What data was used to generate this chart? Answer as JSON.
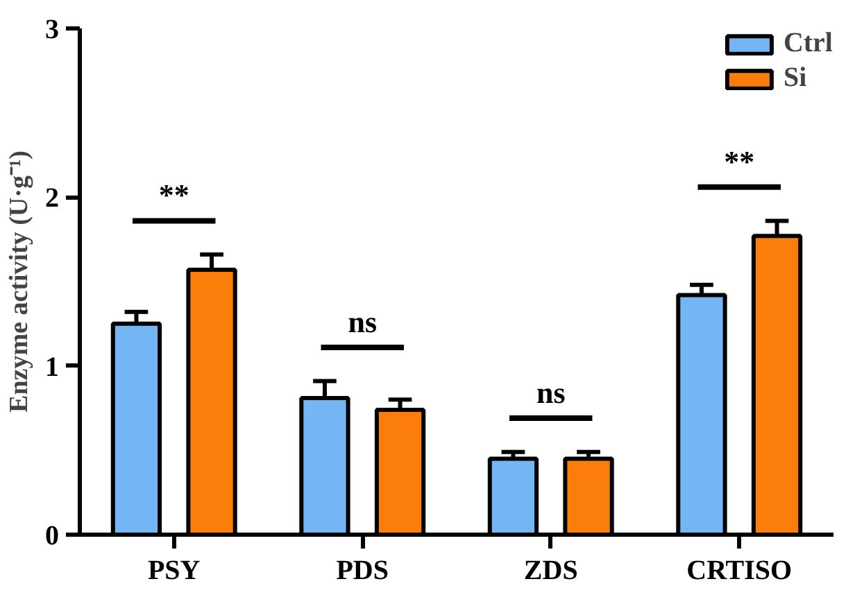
{
  "chart_data": {
    "type": "bar",
    "ylabel": "Enzyme activity (U·g⁻¹)",
    "categories": [
      "PSY",
      "PDS",
      "ZDS",
      "CRTISO"
    ],
    "series": [
      {
        "name": "Ctrl",
        "color": "#74b6f4",
        "values": [
          1.25,
          0.81,
          0.45,
          1.42
        ],
        "errors": [
          0.07,
          0.1,
          0.04,
          0.06
        ]
      },
      {
        "name": "Si",
        "color": "#fb7e0a",
        "values": [
          1.57,
          0.74,
          0.45,
          1.77
        ],
        "errors": [
          0.09,
          0.06,
          0.04,
          0.09
        ]
      }
    ],
    "ylim": [
      0,
      3
    ],
    "yticks": [
      0,
      1,
      2,
      3
    ],
    "grid": false,
    "legend": "top right",
    "annotations": [
      "**",
      "ns",
      "ns",
      "**"
    ]
  }
}
